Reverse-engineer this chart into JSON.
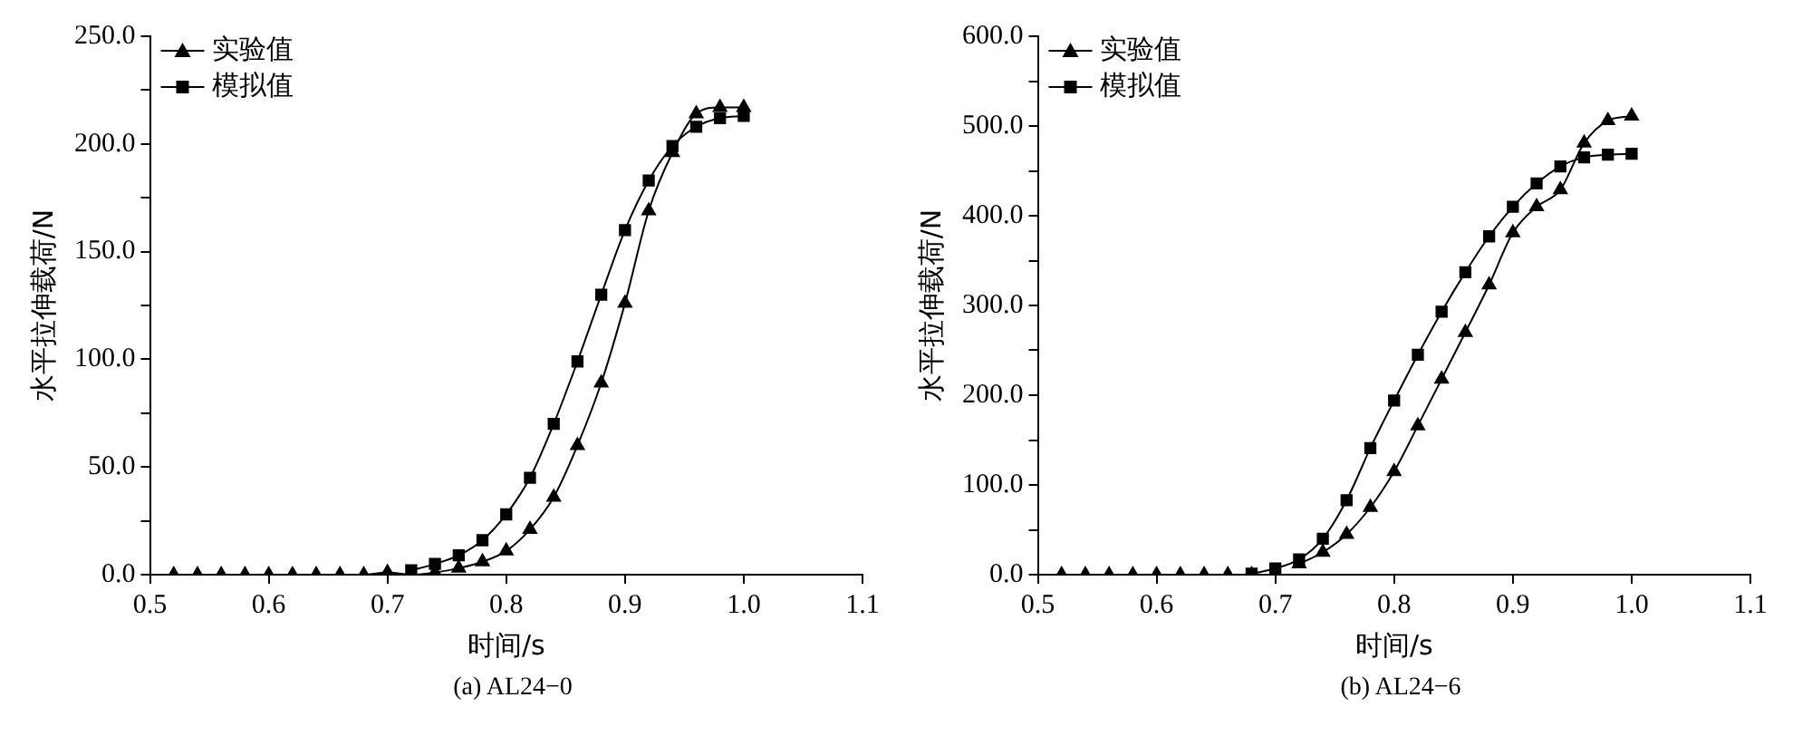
{
  "chart_data": [
    {
      "type": "line",
      "xlabel": "时间/s",
      "ylabel": "水平拉伸载荷/N",
      "annotations": [
        "(a) AL24−0"
      ],
      "legend": "top left",
      "grid": false,
      "xlim": [
        0.5,
        1.1
      ],
      "xticks": [
        0.5,
        0.6,
        0.7,
        0.8,
        0.9,
        {
          "value": 1.0,
          "label": "1.0"
        },
        1.1
      ],
      "ylim": [
        0,
        250
      ],
      "yticks": [
        {
          "value": 0,
          "label": "0.0"
        },
        {
          "value": 25,
          "label": null
        },
        {
          "value": 50,
          "label": "50.0"
        },
        {
          "value": 75,
          "label": null
        },
        {
          "value": 100,
          "label": "100.0"
        },
        {
          "value": 125,
          "label": null
        },
        {
          "value": 150,
          "label": "150.0"
        },
        {
          "value": 175,
          "label": null
        },
        {
          "value": 200,
          "label": "200.0"
        },
        {
          "value": 225,
          "label": null
        },
        {
          "value": 250,
          "label": "250.0"
        }
      ],
      "series": [
        {
          "name": "实验值",
          "color": "#000000",
          "marker": "triangle",
          "x": [
            0.52,
            0.54,
            0.56,
            0.58,
            0.6,
            0.62,
            0.64,
            0.66,
            0.68,
            0.7,
            0.72,
            0.74,
            0.76,
            0.78,
            0.8,
            0.82,
            0.84,
            0.86,
            0.88,
            0.9,
            0.92,
            0.94,
            0.96,
            0.98,
            1.0
          ],
          "values": [
            0,
            0,
            0,
            0,
            0,
            0,
            0,
            0,
            0,
            1,
            0,
            1,
            3,
            6,
            11,
            21,
            36,
            60,
            89,
            126,
            169,
            196,
            214,
            217,
            217
          ]
        },
        {
          "name": "模拟值",
          "color": "#000000",
          "marker": "square",
          "x": [
            0.72,
            0.74,
            0.76,
            0.78,
            0.8,
            0.82,
            0.84,
            0.86,
            0.88,
            0.9,
            0.92,
            0.94,
            0.96,
            0.98,
            1.0
          ],
          "values": [
            2,
            5,
            9,
            16,
            28,
            45,
            70,
            99,
            130,
            160,
            183,
            199,
            208,
            212,
            213
          ]
        }
      ]
    },
    {
      "type": "line",
      "xlabel": "时间/s",
      "ylabel": "水平拉伸载荷/N",
      "annotations": [
        "(b) AL24−6"
      ],
      "legend": "top left",
      "grid": false,
      "xlim": [
        0.5,
        1.1
      ],
      "xticks": [
        0.5,
        0.6,
        0.7,
        0.8,
        0.9,
        {
          "value": 1.0,
          "label": "1.0"
        },
        1.1
      ],
      "ylim": [
        0,
        600
      ],
      "yticks": [
        {
          "value": 0,
          "label": "0.0"
        },
        {
          "value": 50,
          "label": null
        },
        {
          "value": 100,
          "label": "100.0"
        },
        {
          "value": 150,
          "label": null
        },
        {
          "value": 200,
          "label": "200.0"
        },
        {
          "value": 250,
          "label": null
        },
        {
          "value": 300,
          "label": "300.0"
        },
        {
          "value": 350,
          "label": null
        },
        {
          "value": 400,
          "label": "400.0"
        },
        {
          "value": 450,
          "label": null
        },
        {
          "value": 500,
          "label": "500.0"
        },
        {
          "value": 550,
          "label": null
        },
        {
          "value": 600,
          "label": "600.0"
        }
      ],
      "series": [
        {
          "name": "实验值",
          "color": "#000000",
          "marker": "triangle",
          "x": [
            0.52,
            0.54,
            0.56,
            0.58,
            0.6,
            0.62,
            0.64,
            0.66,
            0.68,
            0.7,
            0.72,
            0.74,
            0.76,
            0.78,
            0.8,
            0.82,
            0.84,
            0.86,
            0.88,
            0.9,
            0.92,
            0.94,
            0.96,
            0.98,
            1.0
          ],
          "values": [
            0,
            0,
            0,
            0,
            0,
            0,
            0,
            0,
            0,
            null,
            12,
            25,
            45,
            75,
            115,
            166,
            218,
            270,
            323,
            381,
            410,
            429,
            481,
            506,
            511
          ]
        },
        {
          "name": "模拟值",
          "color": "#000000",
          "marker": "square",
          "x": [
            0.68,
            0.7,
            0.72,
            0.74,
            0.76,
            0.78,
            0.8,
            0.82,
            0.84,
            0.86,
            0.88,
            0.9,
            0.92,
            0.94,
            0.96,
            0.98,
            1.0
          ],
          "values": [
            1,
            7,
            17,
            40,
            83,
            141,
            194,
            245,
            293,
            337,
            377,
            410,
            436,
            455,
            465,
            468,
            469
          ]
        }
      ]
    }
  ]
}
